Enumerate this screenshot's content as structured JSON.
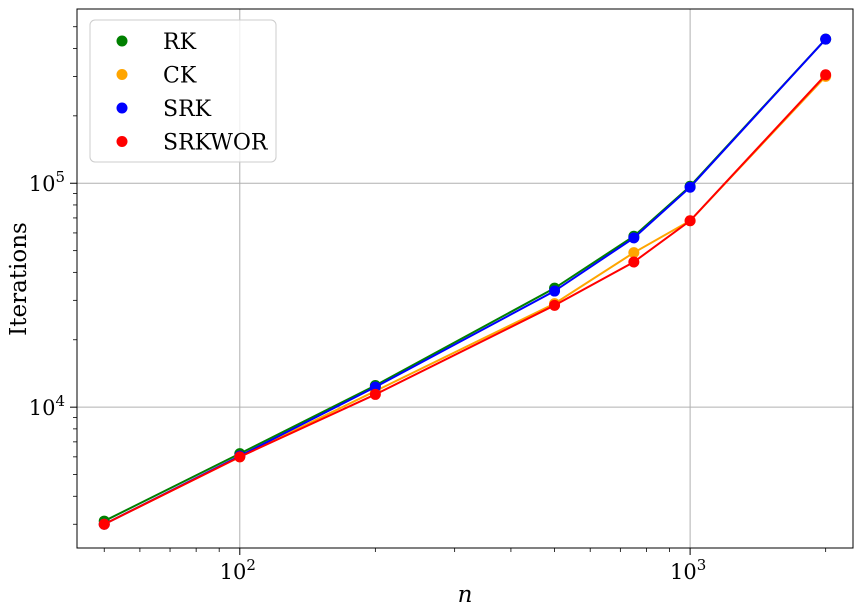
{
  "chart_data": {
    "type": "line",
    "xlabel": "n",
    "ylabel": "Iterations",
    "xscale": "log",
    "yscale": "log",
    "xlim": [
      43.5,
      2300
    ],
    "ylim": [
      2350,
      600000
    ],
    "x_ticks": [
      {
        "value": 100,
        "base": "10",
        "exp": "2"
      },
      {
        "value": 1000,
        "base": "10",
        "exp": "3"
      }
    ],
    "y_ticks": [
      {
        "value": 10000,
        "base": "10",
        "exp": "4"
      },
      {
        "value": 100000,
        "base": "10",
        "exp": "5"
      }
    ],
    "grid": true,
    "legend_position": "top-left",
    "series": [
      {
        "name": "RK",
        "color": "#008000",
        "x": [
          50,
          100,
          200,
          500,
          750,
          1000,
          2000
        ],
        "y": [
          3100,
          6200,
          12500,
          34000,
          58000,
          97000,
          440000
        ]
      },
      {
        "name": "CK",
        "color": "#ffa500",
        "x": [
          50,
          100,
          200,
          500,
          750,
          1000,
          2000
        ],
        "y": [
          3000,
          6000,
          11800,
          29000,
          49000,
          68000,
          300000
        ]
      },
      {
        "name": "SRK",
        "color": "#0000ff",
        "x": [
          50,
          100,
          200,
          500,
          750,
          1000,
          2000
        ],
        "y": [
          3000,
          6050,
          12300,
          33000,
          57000,
          96000,
          440000
        ]
      },
      {
        "name": "SRKWOR",
        "color": "#ff0000",
        "x": [
          50,
          100,
          200,
          500,
          750,
          1000,
          2000
        ],
        "y": [
          3000,
          6000,
          11400,
          28500,
          44500,
          68000,
          305000
        ]
      }
    ]
  }
}
